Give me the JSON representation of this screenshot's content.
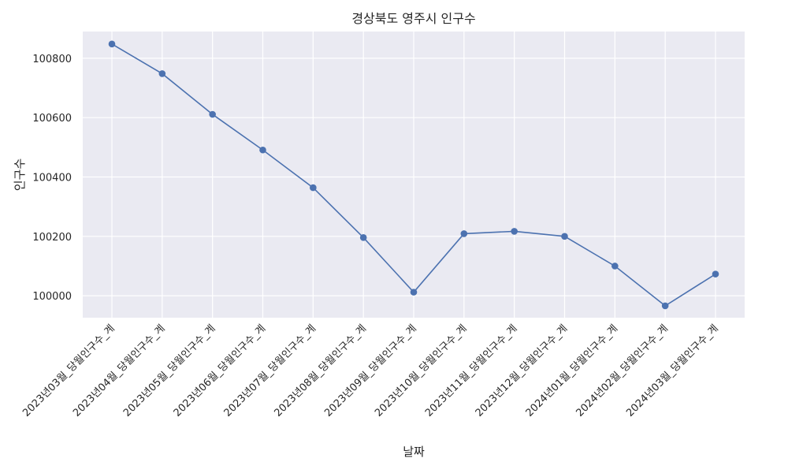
{
  "chart_data": {
    "type": "line",
    "title": "경상북도 영주시 인구수",
    "xlabel": "날짜",
    "ylabel": "인구수",
    "categories": [
      "2023년03월_당월인구수_계",
      "2023년04월_당월인구수_계",
      "2023년05월_당월인구수_계",
      "2023년06월_당월인구수_계",
      "2023년07월_당월인구수_계",
      "2023년08월_당월인구수_계",
      "2023년09월_당월인구수_계",
      "2023년10월_당월인구수_계",
      "2023년11월_당월인구수_계",
      "2023년12월_당월인구수_계",
      "2024년01월_당월인구수_계",
      "2024년02월_당월인구수_계",
      "2024년03월_당월인구수_계"
    ],
    "series": [
      {
        "values": [
          100848,
          100748,
          100611,
          100491,
          100364,
          100196,
          100012,
          100209,
          100217,
          100200,
          100100,
          99966,
          100073
        ]
      }
    ],
    "ylim": [
      99926,
      100890
    ],
    "yticks": [
      100000,
      100200,
      100400,
      100600,
      100800
    ],
    "grid": true,
    "colors": {
      "line": "#4c72b0",
      "plot_bg": "#eaeaf2",
      "grid": "#ffffff"
    }
  }
}
